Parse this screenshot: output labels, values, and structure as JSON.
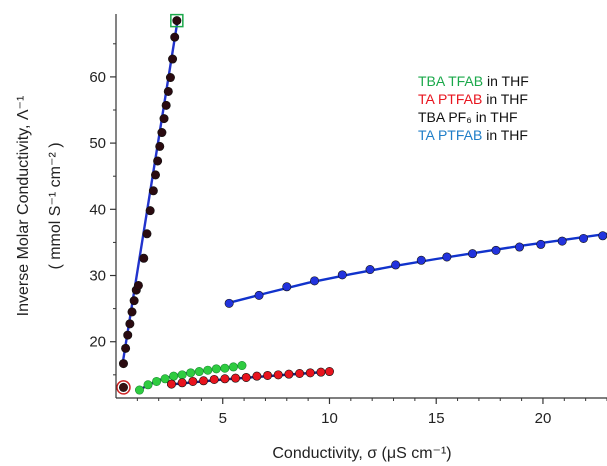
{
  "chart_data": {
    "type": "scatter",
    "title": "",
    "xlabel": "Conductivity, σ (μS cm⁻¹)",
    "ylabel_line1": "Inverse Molar Conductivity, Λ⁻¹",
    "ylabel_line2": "( mmol S⁻¹ cm⁻² )",
    "xlim": [
      0,
      23
    ],
    "ylim": [
      11.5,
      69.5
    ],
    "xticks": [
      5,
      10,
      15,
      20
    ],
    "yticks": [
      20,
      30,
      40,
      50,
      60
    ],
    "legend_position": "top-right",
    "grid": false,
    "series": [
      {
        "name": "TBA TFAB in THF",
        "label_parts": [
          {
            "text": "TBA TFAB",
            "color": "#1aa84a"
          },
          {
            "text": " in THF",
            "color": "#111111"
          }
        ],
        "color": "#2ecc40",
        "fit_color": "#1a237e",
        "points": [
          [
            1.1,
            12.7
          ],
          [
            1.5,
            13.5
          ],
          [
            1.9,
            14.0
          ],
          [
            2.3,
            14.4
          ],
          [
            2.7,
            14.8
          ],
          [
            3.1,
            15.0
          ],
          [
            3.5,
            15.3
          ],
          [
            3.9,
            15.5
          ],
          [
            4.3,
            15.7
          ],
          [
            4.7,
            15.9
          ],
          [
            5.1,
            16.0
          ],
          [
            5.5,
            16.2
          ],
          [
            5.9,
            16.4
          ]
        ],
        "fit": [
          [
            1.0,
            12.6
          ],
          [
            2.0,
            14.2
          ],
          [
            3.0,
            15.1
          ],
          [
            4.0,
            15.6
          ],
          [
            5.0,
            16.0
          ],
          [
            6.0,
            16.4
          ]
        ]
      },
      {
        "name": "TA PTFAB in THF",
        "label_parts": [
          {
            "text": "TA     PTFAB",
            "color": "#e8141e"
          },
          {
            "text": "  in THF",
            "color": "#111111"
          }
        ],
        "color": "#e8141e",
        "fit_color": "#1a237e",
        "points": [
          [
            2.6,
            13.6
          ],
          [
            3.1,
            13.8
          ],
          [
            3.6,
            14.0
          ],
          [
            4.1,
            14.1
          ],
          [
            4.6,
            14.3
          ],
          [
            5.1,
            14.4
          ],
          [
            5.6,
            14.5
          ],
          [
            6.1,
            14.6
          ],
          [
            6.6,
            14.8
          ],
          [
            7.1,
            14.9
          ],
          [
            7.6,
            15.0
          ],
          [
            8.1,
            15.1
          ],
          [
            8.6,
            15.2
          ],
          [
            9.1,
            15.3
          ],
          [
            9.6,
            15.4
          ],
          [
            10.0,
            15.5
          ]
        ],
        "fit": [
          [
            2.4,
            13.5
          ],
          [
            5.0,
            14.3
          ],
          [
            7.5,
            14.9
          ],
          [
            10.1,
            15.5
          ]
        ]
      },
      {
        "name": "TBA PF₆ in THF",
        "label_parts": [
          {
            "text": "TBA PF₆ in THF",
            "color": "#111111"
          }
        ],
        "color": "#2a0a10",
        "fit_color": "#2233cc",
        "points": [
          [
            0.35,
            16.7
          ],
          [
            0.45,
            19.0
          ],
          [
            0.55,
            21.0
          ],
          [
            0.65,
            22.7
          ],
          [
            0.75,
            24.5
          ],
          [
            0.85,
            26.2
          ],
          [
            0.95,
            27.8
          ],
          [
            1.05,
            28.5
          ],
          [
            1.3,
            32.6
          ],
          [
            1.45,
            36.3
          ],
          [
            1.6,
            39.8
          ],
          [
            1.75,
            42.8
          ],
          [
            1.85,
            45.2
          ],
          [
            1.95,
            47.3
          ],
          [
            2.05,
            49.5
          ],
          [
            2.15,
            51.6
          ],
          [
            2.25,
            53.7
          ],
          [
            2.35,
            55.7
          ],
          [
            2.45,
            57.8
          ],
          [
            2.55,
            59.9
          ],
          [
            2.65,
            62.7
          ],
          [
            2.75,
            66.0
          ],
          [
            2.85,
            68.5
          ]
        ],
        "fit": [
          [
            0.3,
            16.5
          ],
          [
            2.9,
            68.8
          ]
        ],
        "highlight_point": [
          2.85,
          68.5
        ],
        "highlight_color": "#1aa84a"
      },
      {
        "name": "TA PTFAB in THF",
        "label_parts": [
          {
            "text": "TA",
            "color": "#1f7ec8"
          },
          {
            "text": "           PTFAB",
            "color": "#1f7ec8"
          },
          {
            "text": "  in THF",
            "color": "#111111"
          }
        ],
        "color": "#2233dd",
        "fit_color": "#1133cc",
        "points": [
          [
            5.3,
            25.8
          ],
          [
            6.7,
            27.0
          ],
          [
            8.0,
            28.3
          ],
          [
            9.3,
            29.2
          ],
          [
            10.6,
            30.1
          ],
          [
            11.9,
            30.9
          ],
          [
            13.1,
            31.6
          ],
          [
            14.3,
            32.3
          ],
          [
            15.5,
            32.8
          ],
          [
            16.7,
            33.3
          ],
          [
            17.8,
            33.8
          ],
          [
            18.9,
            34.3
          ],
          [
            19.9,
            34.7
          ],
          [
            20.9,
            35.2
          ],
          [
            21.9,
            35.6
          ],
          [
            22.8,
            36.0
          ]
        ],
        "fit": [
          [
            5.2,
            25.8
          ],
          [
            7.0,
            27.3
          ],
          [
            9.0,
            28.9
          ],
          [
            11.0,
            30.2
          ],
          [
            13.0,
            31.4
          ],
          [
            15.0,
            32.5
          ],
          [
            17.0,
            33.5
          ],
          [
            19.0,
            34.5
          ],
          [
            21.0,
            35.4
          ],
          [
            23.0,
            36.3
          ]
        ]
      }
    ],
    "extra_points": [
      {
        "x": 0.35,
        "y": 13.1,
        "color": "#3a1010",
        "ring_color": "#cc2222"
      }
    ]
  }
}
